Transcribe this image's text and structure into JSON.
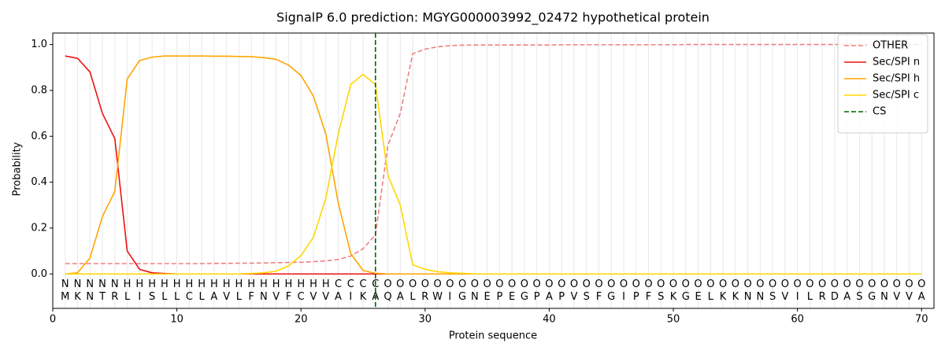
{
  "chart_data": {
    "type": "line",
    "title": "SignalP 6.0 prediction: MGYG000003992_02472 hypothetical protein",
    "x_label": "Protein sequence",
    "y_label": "Probability",
    "xlim": [
      0,
      71
    ],
    "ylim": [
      -0.15,
      1.05
    ],
    "xticks": [
      0,
      10,
      20,
      30,
      40,
      50,
      60,
      70
    ],
    "yticks": [
      {
        "value": 0,
        "label": "0.0"
      },
      {
        "value": 0.2,
        "label": "0.2"
      },
      {
        "value": 0.4,
        "label": "0.4"
      },
      {
        "value": 0.6,
        "label": "0.6"
      },
      {
        "value": 0.8,
        "label": "0.8"
      },
      {
        "value": 1,
        "label": "1.0"
      }
    ],
    "legend": "upper right",
    "x": [
      1,
      2,
      3,
      4,
      5,
      6,
      7,
      8,
      9,
      10,
      11,
      12,
      13,
      14,
      15,
      16,
      17,
      18,
      19,
      20,
      21,
      22,
      23,
      24,
      25,
      26,
      27,
      28,
      29,
      30,
      31,
      32,
      33,
      34,
      35,
      36,
      37,
      38,
      39,
      40,
      41,
      42,
      43,
      44,
      45,
      46,
      47,
      48,
      49,
      50,
      51,
      52,
      53,
      54,
      55,
      56,
      57,
      58,
      59,
      60,
      61,
      62,
      63,
      64,
      65,
      66,
      67,
      68,
      69,
      70
    ],
    "sequence": [
      "M",
      "K",
      "N",
      "T",
      "R",
      "L",
      "I",
      "S",
      "L",
      "L",
      "C",
      "L",
      "A",
      "V",
      "L",
      "F",
      "N",
      "V",
      "F",
      "C",
      "V",
      "V",
      "A",
      "I",
      "K",
      "A",
      "Q",
      "A",
      "L",
      "R",
      "W",
      "I",
      "G",
      "N",
      "E",
      "P",
      "E",
      "G",
      "P",
      "A",
      "P",
      "V",
      "S",
      "F",
      "G",
      "I",
      "P",
      "F",
      "S",
      "K",
      "G",
      "E",
      "L",
      "K",
      "K",
      "N",
      "N",
      "S",
      "V",
      "I",
      "L",
      "R",
      "D",
      "A",
      "S",
      "G",
      "N",
      "V",
      "V",
      "A"
    ],
    "regions": [
      "N",
      "N",
      "N",
      "N",
      "N",
      "H",
      "H",
      "H",
      "H",
      "H",
      "H",
      "H",
      "H",
      "H",
      "H",
      "H",
      "H",
      "H",
      "H",
      "H",
      "H",
      "H",
      "C",
      "C",
      "C",
      "C",
      "O",
      "O",
      "O",
      "O",
      "O",
      "O",
      "O",
      "O",
      "O",
      "O",
      "O",
      "O",
      "O",
      "O",
      "O",
      "O",
      "O",
      "O",
      "O",
      "O",
      "O",
      "O",
      "O",
      "O",
      "O",
      "O",
      "O",
      "O",
      "O",
      "O",
      "O",
      "O",
      "O",
      "O",
      "O",
      "O",
      "O",
      "O",
      "O",
      "O",
      "O",
      "O",
      "O",
      "O"
    ],
    "region_colors": {
      "N": "#ff0000",
      "H": "#ffa500",
      "C": "#ffc800",
      "O": "#808080"
    },
    "series": [
      {
        "name": "OTHER",
        "color": "#f08080",
        "dash": true,
        "values": [
          0.045,
          0.045,
          0.045,
          0.045,
          0.045,
          0.045,
          0.045,
          0.045,
          0.045,
          0.045,
          0.045,
          0.045,
          0.046,
          0.046,
          0.047,
          0.047,
          0.048,
          0.049,
          0.05,
          0.051,
          0.054,
          0.057,
          0.063,
          0.078,
          0.11,
          0.17,
          0.56,
          0.7,
          0.96,
          0.98,
          0.99,
          0.995,
          0.997,
          0.998,
          0.998,
          0.998,
          0.998,
          0.998,
          0.998,
          0.998,
          0.999,
          0.999,
          0.999,
          0.999,
          0.999,
          0.999,
          0.999,
          0.999,
          0.999,
          0.999,
          1,
          1,
          1,
          1,
          1,
          1,
          1,
          1,
          1,
          1,
          1,
          1,
          1,
          1,
          1,
          1,
          1,
          1,
          1,
          1
        ]
      },
      {
        "name": "Sec/SPI n",
        "color": "#ee1111",
        "values": [
          0.95,
          0.94,
          0.88,
          0.7,
          0.59,
          0.1,
          0.02,
          0.005,
          0.002,
          0,
          0,
          0,
          0,
          0,
          0,
          0,
          0,
          0,
          0,
          0,
          0,
          0,
          0,
          0,
          0,
          0,
          0,
          0,
          0,
          0,
          0,
          0,
          0,
          0,
          0,
          0,
          0,
          0,
          0,
          0,
          0,
          0,
          0,
          0,
          0,
          0,
          0,
          0,
          0,
          0,
          0,
          0,
          0,
          0,
          0,
          0,
          0,
          0,
          0,
          0,
          0,
          0,
          0,
          0,
          0,
          0,
          0,
          0,
          0,
          0
        ]
      },
      {
        "name": "Sec/SPI h",
        "color": "#ffa500",
        "values": [
          0,
          0.005,
          0.07,
          0.25,
          0.36,
          0.85,
          0.93,
          0.945,
          0.95,
          0.95,
          0.95,
          0.95,
          0.949,
          0.949,
          0.948,
          0.947,
          0.943,
          0.935,
          0.91,
          0.865,
          0.775,
          0.61,
          0.31,
          0.09,
          0.015,
          0.003,
          0,
          0,
          0,
          0,
          0,
          0,
          0,
          0,
          0,
          0,
          0,
          0,
          0,
          0,
          0,
          0,
          0,
          0,
          0,
          0,
          0,
          0,
          0,
          0,
          0,
          0,
          0,
          0,
          0,
          0,
          0,
          0,
          0,
          0,
          0,
          0,
          0,
          0,
          0,
          0,
          0,
          0,
          0,
          0
        ]
      },
      {
        "name": "Sec/SPI c",
        "color": "#ffd700",
        "values": [
          0,
          0,
          0,
          0,
          0,
          0,
          0,
          0,
          0,
          0,
          0,
          0,
          0,
          0,
          0,
          0.002,
          0.005,
          0.012,
          0.035,
          0.08,
          0.16,
          0.33,
          0.61,
          0.825,
          0.87,
          0.825,
          0.43,
          0.3,
          0.04,
          0.02,
          0.01,
          0.005,
          0.003,
          0,
          0,
          0,
          0,
          0,
          0,
          0,
          0,
          0,
          0,
          0,
          0,
          0,
          0,
          0,
          0,
          0,
          0,
          0,
          0,
          0,
          0,
          0,
          0,
          0,
          0,
          0,
          0,
          0,
          0,
          0,
          0,
          0,
          0,
          0,
          0,
          0
        ]
      }
    ],
    "cs": {
      "name": "CS",
      "color": "#006400",
      "x": 26
    }
  }
}
